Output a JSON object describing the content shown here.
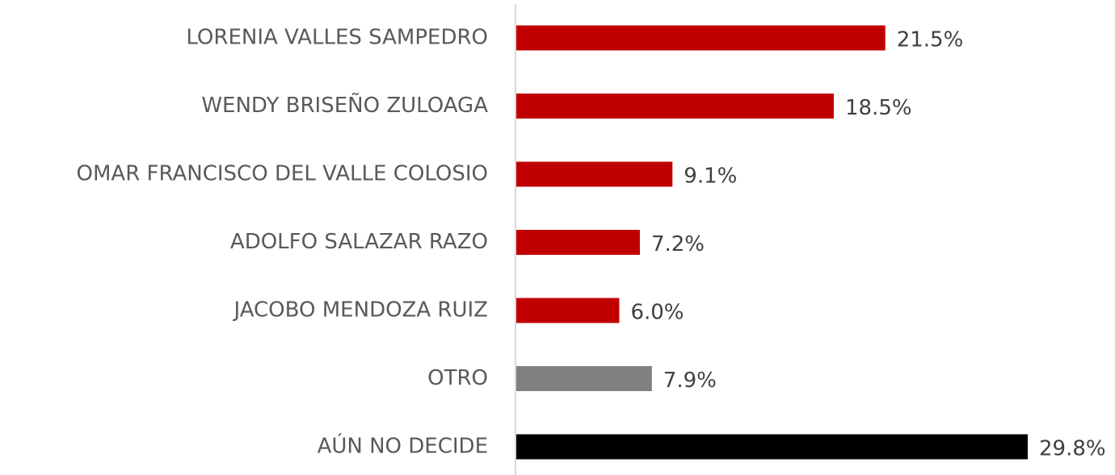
{
  "chart_data": {
    "type": "barh",
    "categories": [
      "LORENIA VALLES SAMPEDRO",
      "WENDY BRISEÑO ZULOAGA",
      "OMAR FRANCISCO DEL VALLE COLOSIO",
      "ADOLFO SALAZAR RAZO",
      "JACOBO MENDOZA RUIZ",
      "OTRO",
      "AÚN NO DECIDE"
    ],
    "values": [
      21.5,
      18.5,
      9.1,
      7.2,
      6.0,
      7.9,
      29.8
    ],
    "value_labels": [
      "21.5%",
      "18.5%",
      "9.1%",
      "7.2%",
      "6.0%",
      "7.9%",
      "29.8%"
    ],
    "colors": [
      "#c00000",
      "#c00000",
      "#c00000",
      "#c00000",
      "#c00000",
      "#808080",
      "#000000"
    ]
  }
}
